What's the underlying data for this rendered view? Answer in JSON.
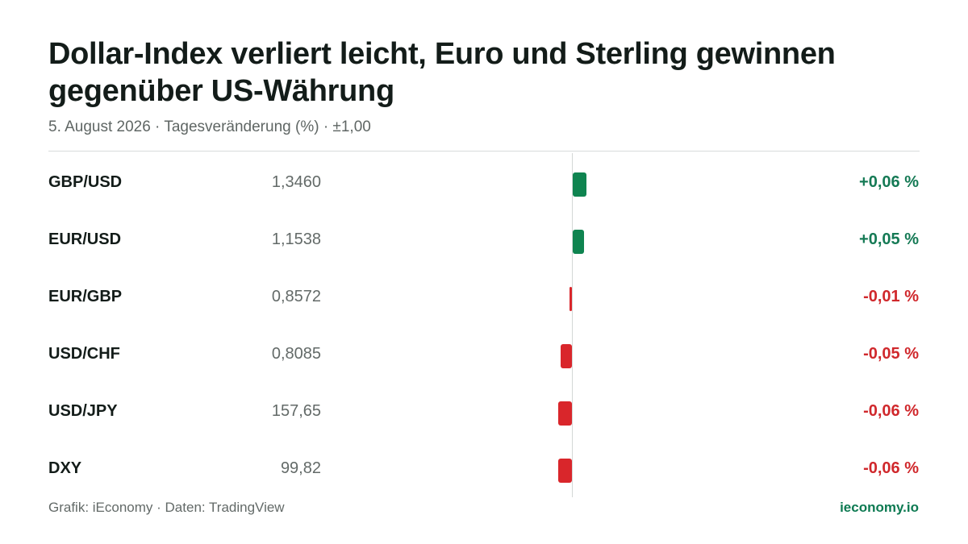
{
  "title": "Dollar-Index verliert leicht, Euro und Sterling gewinnen gegenüber US-Währung",
  "subtitle": "5. August 2026 · Tagesveränderung (%) · ±1,00",
  "footer": {
    "source": "Grafik: iEconomy · Daten: TradingView",
    "brand": "ieconomy.io"
  },
  "colors": {
    "positive": "#0f8450",
    "negative": "#d9262b",
    "positive_text": "#157a55",
    "negative_text": "#d0282c"
  },
  "chart_data": {
    "type": "bar",
    "orientation": "horizontal",
    "xlim": [
      -1,
      1
    ],
    "rows": [
      {
        "pair": "GBP/USD",
        "price": "1,3460",
        "change": 0.06,
        "change_label": "+0,06 %"
      },
      {
        "pair": "EUR/USD",
        "price": "1,1538",
        "change": 0.05,
        "change_label": "+0,05 %"
      },
      {
        "pair": "EUR/GBP",
        "price": "0,8572",
        "change": -0.01,
        "change_label": "-0,01 %"
      },
      {
        "pair": "USD/CHF",
        "price": "0,8085",
        "change": -0.05,
        "change_label": "-0,05 %"
      },
      {
        "pair": "USD/JPY",
        "price": "157,65",
        "change": -0.06,
        "change_label": "-0,06 %"
      },
      {
        "pair": "DXY",
        "price": "99,82",
        "change": -0.06,
        "change_label": "-0,06 %"
      }
    ]
  }
}
